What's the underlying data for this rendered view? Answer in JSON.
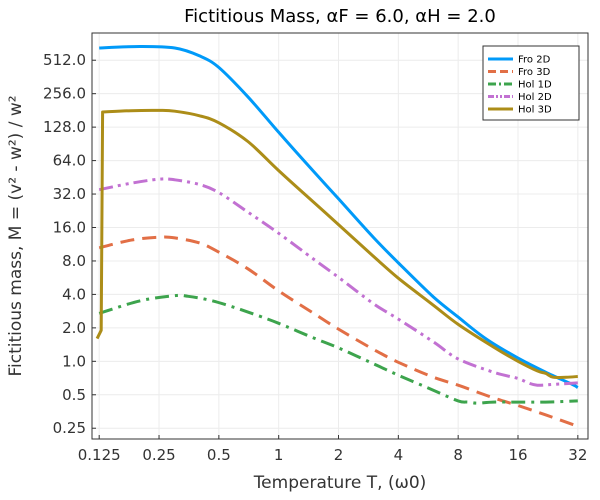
{
  "chart_data": {
    "type": "line",
    "title": "Fictitious Mass, αF = 6.0, αH = 2.0",
    "xlabel": "Temperature T, (ω0)",
    "ylabel": "Fictitious mass, M = (v² - w²) / w²",
    "x_scale": "log2",
    "y_scale": "log2",
    "xlim": [
      0.115,
      36
    ],
    "ylim": [
      0.2,
      900
    ],
    "x_ticks": [
      {
        "value": 0.125,
        "label": "0.125"
      },
      {
        "value": 0.25,
        "label": "0.25"
      },
      {
        "value": 0.5,
        "label": "0.5"
      },
      {
        "value": 1,
        "label": "1"
      },
      {
        "value": 2,
        "label": "2"
      },
      {
        "value": 4,
        "label": "4"
      },
      {
        "value": 8,
        "label": "8"
      },
      {
        "value": 16,
        "label": "16"
      },
      {
        "value": 32,
        "label": "32"
      }
    ],
    "y_ticks": [
      {
        "value": 0.25,
        "label": "0.25"
      },
      {
        "value": 0.5,
        "label": "0.5"
      },
      {
        "value": 1,
        "label": "1.0"
      },
      {
        "value": 2,
        "label": "2.0"
      },
      {
        "value": 4,
        "label": "4.0"
      },
      {
        "value": 8,
        "label": "8.0"
      },
      {
        "value": 16,
        "label": "16.0"
      },
      {
        "value": 32,
        "label": "32.0"
      },
      {
        "value": 64,
        "label": "64.0"
      },
      {
        "value": 128,
        "label": "128.0"
      },
      {
        "value": 256,
        "label": "256.0"
      },
      {
        "value": 512,
        "label": "512.0"
      }
    ],
    "grid": true,
    "legend_position": "top-right",
    "series": [
      {
        "name": "Fro 2D",
        "color": "#009af9",
        "dash": "solid",
        "points": [
          [
            0.125,
            660
          ],
          [
            0.2,
            680
          ],
          [
            0.3,
            660
          ],
          [
            0.4,
            560
          ],
          [
            0.5,
            440
          ],
          [
            0.7,
            240
          ],
          [
            1,
            115
          ],
          [
            1.5,
            51
          ],
          [
            2,
            29
          ],
          [
            3,
            13
          ],
          [
            4,
            7.7
          ],
          [
            6,
            3.8
          ],
          [
            8,
            2.5
          ],
          [
            11,
            1.6
          ],
          [
            16,
            1.07
          ],
          [
            22,
            0.8
          ],
          [
            30,
            0.62
          ],
          [
            32,
            0.58
          ]
        ]
      },
      {
        "name": "Fro 3D",
        "color": "#e26f46",
        "dash": "dashed",
        "points": [
          [
            0.125,
            10.5
          ],
          [
            0.18,
            12.3
          ],
          [
            0.25,
            13.1
          ],
          [
            0.3,
            12.9
          ],
          [
            0.4,
            11.6
          ],
          [
            0.5,
            9.6
          ],
          [
            0.7,
            6.8
          ],
          [
            1,
            4.3
          ],
          [
            1.5,
            2.7
          ],
          [
            2,
            1.95
          ],
          [
            3,
            1.28
          ],
          [
            4,
            0.98
          ],
          [
            6,
            0.72
          ],
          [
            8,
            0.61
          ],
          [
            12,
            0.47
          ],
          [
            16,
            0.4
          ],
          [
            22,
            0.33
          ],
          [
            32,
            0.26
          ]
        ]
      },
      {
        "name": "Hol 1D",
        "color": "#3da44d",
        "dash": "dashdot",
        "points": [
          [
            0.125,
            2.7
          ],
          [
            0.2,
            3.5
          ],
          [
            0.3,
            3.9
          ],
          [
            0.35,
            3.85
          ],
          [
            0.45,
            3.55
          ],
          [
            0.6,
            3.05
          ],
          [
            0.8,
            2.55
          ],
          [
            1,
            2.2
          ],
          [
            1.5,
            1.62
          ],
          [
            2,
            1.32
          ],
          [
            3,
            0.95
          ],
          [
            4,
            0.75
          ],
          [
            6,
            0.55
          ],
          [
            8,
            0.44
          ],
          [
            9,
            0.43
          ],
          [
            10,
            0.42
          ],
          [
            12,
            0.43
          ],
          [
            16,
            0.43
          ],
          [
            22,
            0.43
          ],
          [
            32,
            0.44
          ]
        ]
      },
      {
        "name": "Hol 2D",
        "color": "#c271d2",
        "dash": "dashdotdot",
        "points": [
          [
            0.125,
            35
          ],
          [
            0.18,
            40
          ],
          [
            0.25,
            43.5
          ],
          [
            0.3,
            43
          ],
          [
            0.4,
            39
          ],
          [
            0.5,
            33
          ],
          [
            0.7,
            22
          ],
          [
            1,
            14.2
          ],
          [
            1.5,
            8.3
          ],
          [
            2,
            5.7
          ],
          [
            3,
            3.3
          ],
          [
            4,
            2.4
          ],
          [
            6,
            1.5
          ],
          [
            8,
            1.05
          ],
          [
            12,
            0.8
          ],
          [
            16,
            0.7
          ],
          [
            18,
            0.64
          ],
          [
            20,
            0.61
          ],
          [
            24,
            0.62
          ],
          [
            32,
            0.64
          ]
        ]
      },
      {
        "name": "Hol 3D",
        "color": "#ac8d18",
        "dash": "solid",
        "points": [
          [
            0.122,
            1.6
          ],
          [
            0.128,
            1.9
          ],
          [
            0.13,
            175
          ],
          [
            0.18,
            180
          ],
          [
            0.25,
            181
          ],
          [
            0.3,
            178
          ],
          [
            0.4,
            162
          ],
          [
            0.5,
            140
          ],
          [
            0.7,
            95
          ],
          [
            1,
            52
          ],
          [
            1.5,
            27
          ],
          [
            2,
            17
          ],
          [
            3,
            8.8
          ],
          [
            4,
            5.6
          ],
          [
            6,
            3.2
          ],
          [
            8,
            2.15
          ],
          [
            12,
            1.35
          ],
          [
            16,
            1.0
          ],
          [
            20,
            0.82
          ],
          [
            22,
            0.78
          ],
          [
            24,
            0.72
          ],
          [
            28,
            0.72
          ],
          [
            32,
            0.73
          ]
        ]
      }
    ]
  }
}
